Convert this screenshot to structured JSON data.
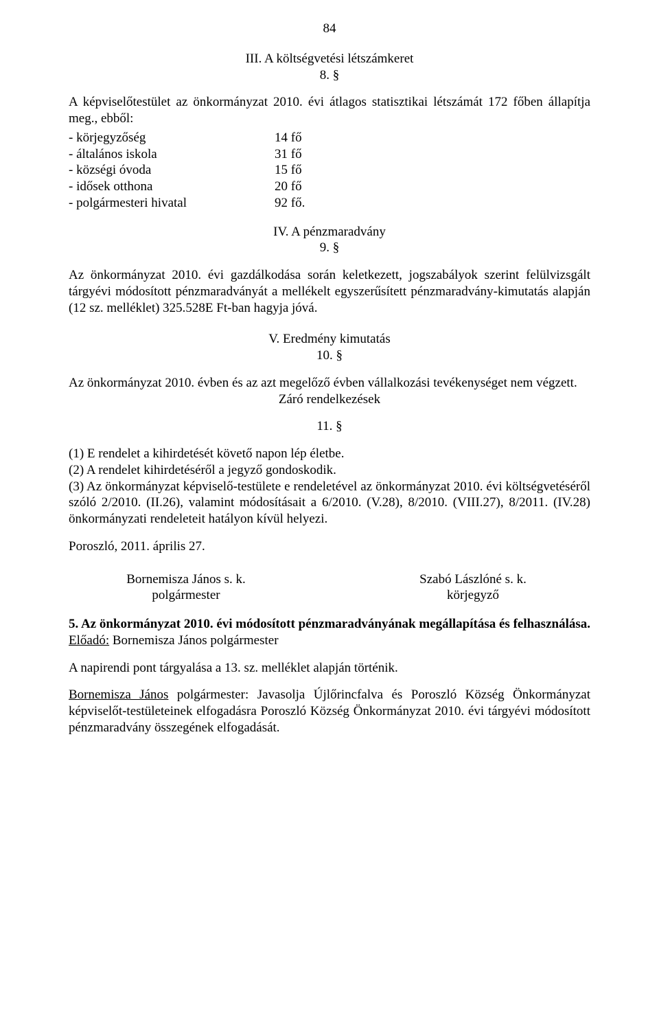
{
  "page_number": "84",
  "sec3": {
    "title": "III. A költségvetési létszámkeret",
    "num": "8. §",
    "intro": "A képviselőtestület az önkormányzat 2010. évi átlagos statisztikai létszámát 172 főben állapítja meg., ebből:",
    "items": [
      {
        "label": "- körjegyzőség",
        "value": "14 fő"
      },
      {
        "label": "- általános iskola",
        "value": "31 fő"
      },
      {
        "label": "- községi óvoda",
        "value": "15 fő"
      },
      {
        "label": "- idősek otthona",
        "value": "20 fő"
      },
      {
        "label": "- polgármesteri hivatal",
        "value": "92 fő."
      }
    ]
  },
  "sec4": {
    "title": "IV. A pénzmaradvány",
    "num": "9. §",
    "para": "Az önkormányzat 2010. évi gazdálkodása során keletkezett, jogszabályok szerint felülvizsgált tárgyévi módosított pénzmaradványát a mellékelt egyszerűsített pénzmaradvány-kimutatás alapján (12 sz. melléklet) 325.528E Ft-ban  hagyja jóvá."
  },
  "sec5": {
    "title": "V. Eredmény kimutatás",
    "num": "10. §",
    "para": "Az önkormányzat 2010. évben és az azt megelőző évben vállalkozási tevékenységet nem végzett.",
    "closing_title": "Záró rendelkezések"
  },
  "sec11": {
    "num": "11. §",
    "p1": "(1) E rendelet a kihirdetését követő  napon  lép életbe.",
    "p2": "(2) A rendelet kihirdetéséről a jegyző gondoskodik.",
    "p3": "(3) Az önkormányzat képviselő-testülete e rendeletével az önkormányzat 2010. évi költségvetéséről szóló 2/2010. (II.26), valamint módosításait a 6/2010. (V.28), 8/2010. (VIII.27), 8/2011. (IV.28) önkormányzati rendeleteit hatályon kívül helyezi."
  },
  "date_place": "Poroszló, 2011. április 27.",
  "sign_left_name": "Bornemisza János s. k.",
  "sign_left_role": "polgármester",
  "sign_right_name": "Szabó Lászlóné s. k.",
  "sign_right_role": "körjegyző",
  "item5_heading": "5. Az önkormányzat 2010. évi módosított pénzmaradványának megállapítása és felhasználása.",
  "item5_presenter_label": "Előadó:",
  "item5_presenter": " Bornemisza János polgármester",
  "item5_note": "A napirendi pont tárgyalása a 13. sz. melléklet alapján történik.",
  "item5_speaker": "Bornemisza János",
  "item5_role": " polgármester: ",
  "item5_body": "Javasolja  Újlőrincfalva és Poroszló Község Önkormányzat képviselőt-testületeinek elfogadásra  Poroszló Község Önkormányzat 2010. évi tárgyévi módosított pénzmaradvány összegének elfogadását."
}
